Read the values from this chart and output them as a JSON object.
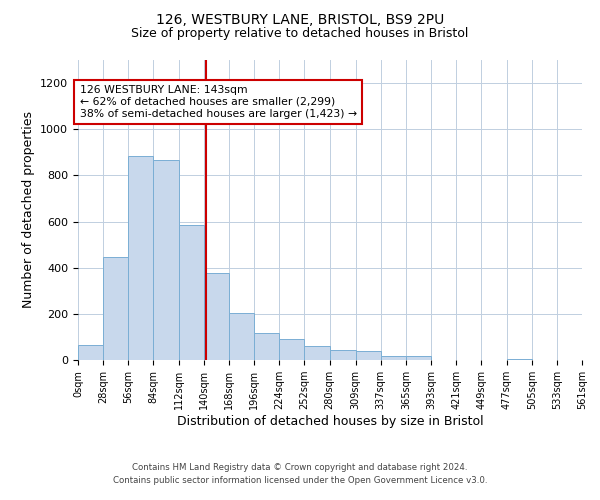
{
  "title": "126, WESTBURY LANE, BRISTOL, BS9 2PU",
  "subtitle": "Size of property relative to detached houses in Bristol",
  "xlabel": "Distribution of detached houses by size in Bristol",
  "ylabel": "Number of detached properties",
  "bar_color": "#c8d8ec",
  "bar_edgecolor": "#7aaed4",
  "background_color": "#ffffff",
  "grid_color": "#c0cfe0",
  "marker_value": 143,
  "marker_color": "#cc0000",
  "bin_edges": [
    0,
    28,
    56,
    84,
    112,
    140,
    168,
    196,
    224,
    252,
    280,
    309,
    337,
    365,
    393,
    421,
    449,
    477,
    505,
    533,
    561
  ],
  "bin_labels": [
    "0sqm",
    "28sqm",
    "56sqm",
    "84sqm",
    "112sqm",
    "140sqm",
    "168sqm",
    "196sqm",
    "224sqm",
    "252sqm",
    "280sqm",
    "309sqm",
    "337sqm",
    "365sqm",
    "393sqm",
    "421sqm",
    "449sqm",
    "477sqm",
    "505sqm",
    "533sqm",
    "561sqm"
  ],
  "bar_heights": [
    65,
    445,
    885,
    865,
    585,
    375,
    205,
    115,
    90,
    60,
    45,
    40,
    18,
    16,
    0,
    0,
    0,
    5,
    0,
    0
  ],
  "ylim": [
    0,
    1300
  ],
  "yticks": [
    0,
    200,
    400,
    600,
    800,
    1000,
    1200
  ],
  "annotation_title": "126 WESTBURY LANE: 143sqm",
  "annotation_line1": "← 62% of detached houses are smaller (2,299)",
  "annotation_line2": "38% of semi-detached houses are larger (1,423) →",
  "annotation_box_color": "#ffffff",
  "annotation_border_color": "#cc0000",
  "footer_line1": "Contains HM Land Registry data © Crown copyright and database right 2024.",
  "footer_line2": "Contains public sector information licensed under the Open Government Licence v3.0."
}
